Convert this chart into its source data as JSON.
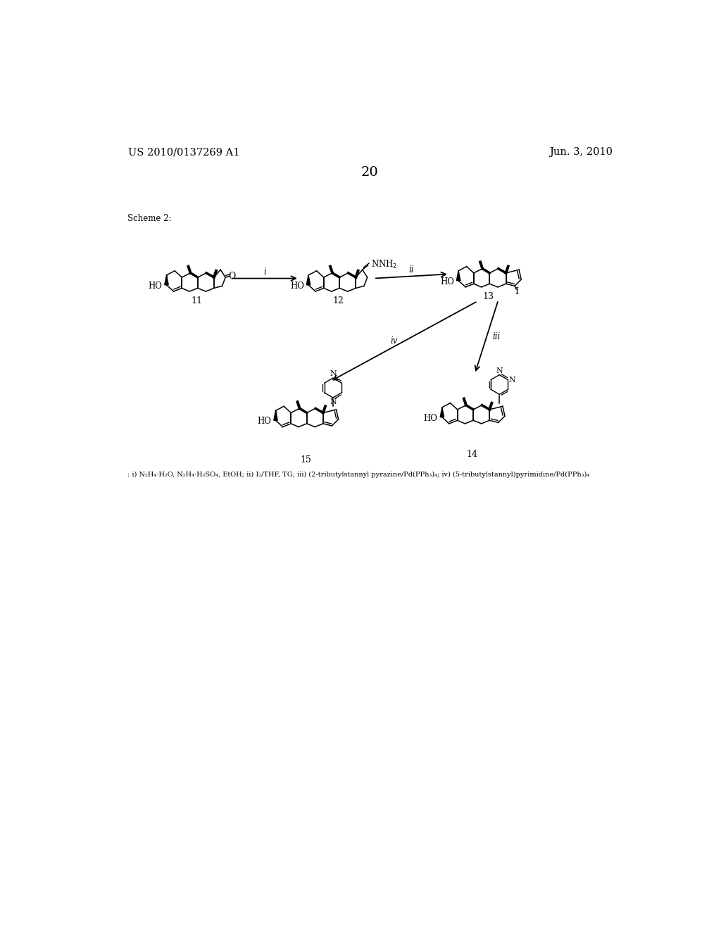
{
  "patent_number": "US 2010/0137269 A1",
  "date": "Jun. 3, 2010",
  "page_number": "20",
  "scheme_label": "Scheme 2:",
  "footnote": ": i) N2H4·H2O, N2H4·H2SO4, EtOH; ii) I2/THF, TG; iii) (2-tributylstannyl pyrazine/Pd(PPh3)4; iv) (5-tributylstannyl)pyrimidine/Pd(PPh3)4",
  "bg_color": "#ffffff"
}
